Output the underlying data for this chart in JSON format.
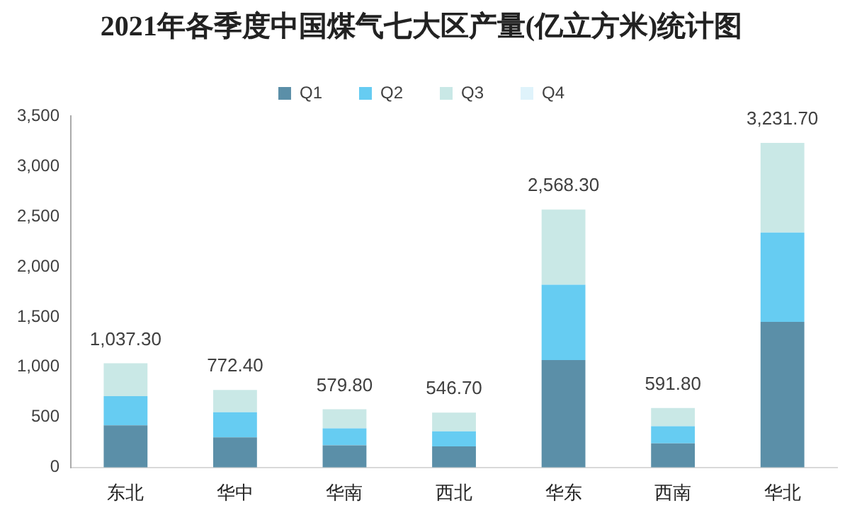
{
  "chart_data": {
    "type": "bar",
    "stacked": true,
    "title": "2021年各季度中国煤气七大区产量(亿立方米)统计图",
    "categories": [
      "东北",
      "华中",
      "华南",
      "西北",
      "华东",
      "西南",
      "华北"
    ],
    "series": [
      {
        "name": "Q1",
        "color": "#5b8fa8",
        "values": [
          420,
          300,
          220,
          210,
          1070,
          240,
          1450
        ]
      },
      {
        "name": "Q2",
        "color": "#66ccf2",
        "values": [
          290,
          250,
          170,
          150,
          750,
          170,
          890
        ]
      },
      {
        "name": "Q3",
        "color": "#c9e8e6",
        "values": [
          327.3,
          222.4,
          189.8,
          186.7,
          748.3,
          181.8,
          891.7
        ]
      },
      {
        "name": "Q4",
        "color": "#dff3fb",
        "values": [
          0,
          0,
          0,
          0,
          0,
          0,
          0
        ]
      }
    ],
    "totals": [
      "1,037.30",
      "772.40",
      "579.80",
      "546.70",
      "2,568.30",
      "591.80",
      "3,231.70"
    ],
    "ylim": [
      0,
      3500
    ],
    "yticks": [
      {
        "value": 0,
        "label": "0"
      },
      {
        "value": 500,
        "label": "500"
      },
      {
        "value": 1000,
        "label": "1,000"
      },
      {
        "value": 1500,
        "label": "1,500"
      },
      {
        "value": 2000,
        "label": "2,000"
      },
      {
        "value": 2500,
        "label": "2,500"
      },
      {
        "value": 3000,
        "label": "3,000"
      },
      {
        "value": 3500,
        "label": "3,500"
      }
    ],
    "grid": false,
    "legend": "top"
  }
}
